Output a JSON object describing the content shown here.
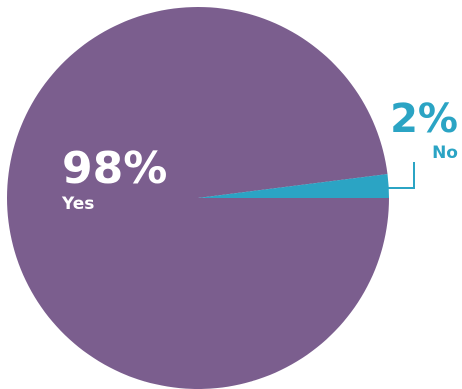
{
  "chart_data": {
    "type": "pie",
    "slices": [
      {
        "label": "Yes",
        "value": 98,
        "value_label": "98%",
        "color": "#7b5e8e"
      },
      {
        "label": "No",
        "value": 2,
        "value_label": "2%",
        "color": "#2ba4c4"
      }
    ],
    "title": "",
    "legend": "none"
  }
}
